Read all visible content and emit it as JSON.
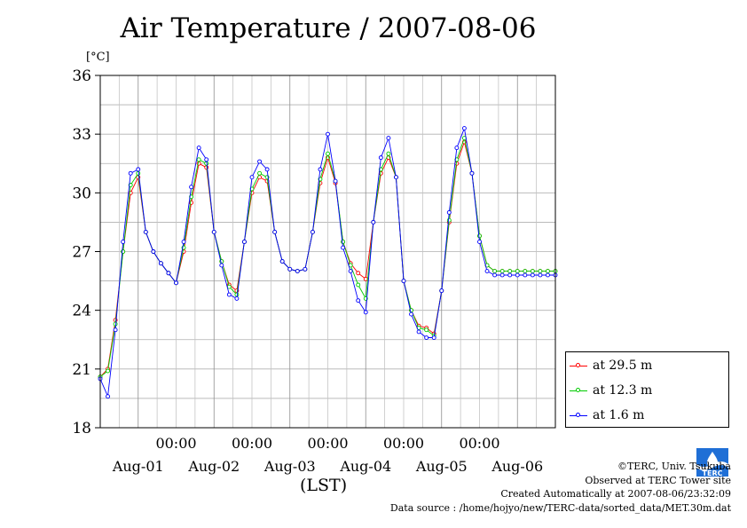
{
  "chart_data": {
    "type": "line",
    "title": "Air Temperature / 2007-08-06",
    "ylabel": "[°C]",
    "xlabel": "(LST)",
    "ylim": [
      18,
      36
    ],
    "yticks": [
      18,
      21,
      24,
      27,
      30,
      33,
      36
    ],
    "xlim": [
      0,
      6
    ],
    "xaxis_unit": "days from 2007-07-31 12:00 LST",
    "x_midnight_ticks": [
      "00:00",
      "00:00",
      "00:00",
      "00:00",
      "00:00"
    ],
    "x_date_labels": [
      "Aug-01",
      "Aug-02",
      "Aug-03",
      "Aug-04",
      "Aug-05",
      "Aug-06"
    ],
    "grid": true,
    "legend_position": "right-bottom",
    "series": [
      {
        "name": "at 29.5 m",
        "color": "#ff0000",
        "x": [
          0,
          0.1,
          0.2,
          0.3,
          0.4,
          0.5,
          0.6,
          0.7,
          0.8,
          0.9,
          1.0,
          1.1,
          1.2,
          1.3,
          1.4,
          1.5,
          1.6,
          1.7,
          1.8,
          1.9,
          2.0,
          2.1,
          2.2,
          2.3,
          2.4,
          2.5,
          2.6,
          2.7,
          2.8,
          2.9,
          3.0,
          3.1,
          3.2,
          3.3,
          3.4,
          3.5,
          3.6,
          3.7,
          3.8,
          3.9,
          4.0,
          4.1,
          4.2,
          4.3,
          4.4,
          4.5,
          4.6,
          4.7,
          4.8,
          4.9,
          5.0,
          5.1,
          5.2,
          5.3,
          5.4,
          5.5,
          5.6,
          5.7,
          5.8,
          5.9,
          6.0
        ],
        "values": [
          20.6,
          21.0,
          23.5,
          27.0,
          30.0,
          30.8,
          28.0,
          27.0,
          26.4,
          25.9,
          25.4,
          27.0,
          29.5,
          31.5,
          31.3,
          28.0,
          26.5,
          25.3,
          25.0,
          27.5,
          30.0,
          30.8,
          30.6,
          28.0,
          26.5,
          26.1,
          26.0,
          26.1,
          28.0,
          30.5,
          31.8,
          30.5,
          27.5,
          26.4,
          25.9,
          25.6,
          28.5,
          31.0,
          31.8,
          30.8,
          25.5,
          24.0,
          23.2,
          23.1,
          22.8,
          25.0,
          28.5,
          31.5,
          32.6,
          31.0,
          27.8,
          26.3,
          26.0,
          26.0,
          26.0,
          26.0,
          26.0,
          26.0,
          26.0,
          26.0,
          26.0
        ]
      },
      {
        "name": "at 12.3 m",
        "color": "#00cc00",
        "x": [
          0,
          0.1,
          0.2,
          0.3,
          0.4,
          0.5,
          0.6,
          0.7,
          0.8,
          0.9,
          1.0,
          1.1,
          1.2,
          1.3,
          1.4,
          1.5,
          1.6,
          1.7,
          1.8,
          1.9,
          2.0,
          2.1,
          2.2,
          2.3,
          2.4,
          2.5,
          2.6,
          2.7,
          2.8,
          2.9,
          3.0,
          3.1,
          3.2,
          3.3,
          3.4,
          3.5,
          3.6,
          3.7,
          3.8,
          3.9,
          4.0,
          4.1,
          4.2,
          4.3,
          4.4,
          4.5,
          4.6,
          4.7,
          4.8,
          4.9,
          5.0,
          5.1,
          5.2,
          5.3,
          5.4,
          5.5,
          5.6,
          5.7,
          5.8,
          5.9,
          6.0
        ],
        "values": [
          20.6,
          20.9,
          23.3,
          27.0,
          30.4,
          31.0,
          28.0,
          27.0,
          26.4,
          25.9,
          25.4,
          27.2,
          29.8,
          31.7,
          31.5,
          28.0,
          26.5,
          25.2,
          24.8,
          27.5,
          30.2,
          31.0,
          30.8,
          28.0,
          26.5,
          26.1,
          26.0,
          26.1,
          28.0,
          30.7,
          32.0,
          30.6,
          27.5,
          26.3,
          25.3,
          24.6,
          28.5,
          31.2,
          32.0,
          30.8,
          25.5,
          24.0,
          23.1,
          23.0,
          22.7,
          25.0,
          28.6,
          31.7,
          32.8,
          31.0,
          27.8,
          26.3,
          26.0,
          26.0,
          26.0,
          26.0,
          26.0,
          26.0,
          26.0,
          26.0,
          26.0
        ]
      },
      {
        "name": "at 1.6 m",
        "color": "#0000ff",
        "x": [
          0,
          0.1,
          0.2,
          0.3,
          0.4,
          0.5,
          0.6,
          0.7,
          0.8,
          0.9,
          1.0,
          1.1,
          1.2,
          1.3,
          1.4,
          1.5,
          1.6,
          1.7,
          1.8,
          1.9,
          2.0,
          2.1,
          2.2,
          2.3,
          2.4,
          2.5,
          2.6,
          2.7,
          2.8,
          2.9,
          3.0,
          3.1,
          3.2,
          3.3,
          3.4,
          3.5,
          3.6,
          3.7,
          3.8,
          3.9,
          4.0,
          4.1,
          4.2,
          4.3,
          4.4,
          4.5,
          4.6,
          4.7,
          4.8,
          4.9,
          5.0,
          5.1,
          5.2,
          5.3,
          5.4,
          5.5,
          5.6,
          5.7,
          5.8,
          5.9,
          6.0
        ],
        "values": [
          20.5,
          19.6,
          23.0,
          27.5,
          31.0,
          31.2,
          28.0,
          27.0,
          26.4,
          25.9,
          25.4,
          27.5,
          30.3,
          32.3,
          31.7,
          28.0,
          26.3,
          24.8,
          24.6,
          27.5,
          30.8,
          31.6,
          31.2,
          28.0,
          26.5,
          26.1,
          26.0,
          26.1,
          28.0,
          31.2,
          33.0,
          30.6,
          27.2,
          26.0,
          24.5,
          23.9,
          28.5,
          31.8,
          32.8,
          30.8,
          25.5,
          23.8,
          22.9,
          22.6,
          22.6,
          25.0,
          29.0,
          32.3,
          33.3,
          31.0,
          27.5,
          26.0,
          25.8,
          25.8,
          25.8,
          25.8,
          25.8,
          25.8,
          25.8,
          25.8,
          25.8
        ]
      }
    ]
  },
  "credits": {
    "copyright": "©TERC, Univ. Tsukuba",
    "site": "Observed at TERC Tower site",
    "created": "Created Automatically at 2007-08-06/23:32:09",
    "source": "Data source : /home/hojyo/new/TERC-data/sorted_data/MET.30m.dat"
  },
  "logo_text": "TERC"
}
